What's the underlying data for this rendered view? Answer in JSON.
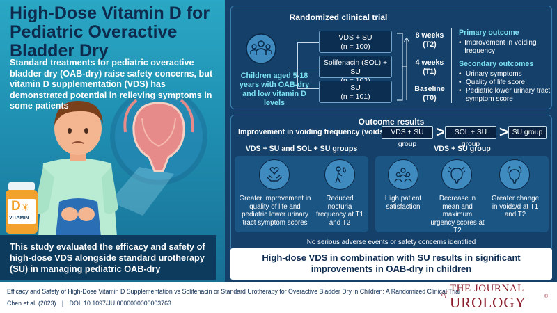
{
  "title": "High-Dose Vitamin D for Pediatric Overactive Bladder Dry",
  "intro": "Standard treatments for pediatric overactive bladder dry (OAB-dry) raise safety concerns, but vitamin D supplementation (VDS) has demonstrated potential in relieving symptoms in some patients",
  "bottle_label": "VITAMIN",
  "bottle_letter": "D",
  "study_summary": "This study evaluated the efficacy and safety of high-dose VDS alongside standard urotherapy (SU) in managing pediatric OAB-dry",
  "trial": {
    "header": "Randomized clinical trial",
    "population": "Children aged 5-18 years with OAB-dry and low vitamin D levels",
    "arms": [
      {
        "name": "VDS + SU",
        "n": "(n = 100)"
      },
      {
        "name": "Solifenacin (SOL) + SU",
        "n": "(n = 102)"
      },
      {
        "name": "SU",
        "n": "(n = 101)"
      }
    ],
    "timepoints": [
      {
        "label": "8 weeks",
        "code": "(T2)"
      },
      {
        "label": "4 weeks",
        "code": "(T1)"
      },
      {
        "label": "Baseline",
        "code": "(T0)"
      }
    ],
    "primary_title": "Primary outcome",
    "primary_items": [
      "Improvement in voiding frequency"
    ],
    "secondary_title": "Secondary outcomes",
    "secondary_items": [
      "Urinary symptoms",
      "Quality of life score",
      "Pediatric lower urinary tract symptom score"
    ]
  },
  "results": {
    "header": "Outcome results",
    "vf_label": "Improvement in voiding frequency (voids/d):",
    "ranking": [
      "VDS + SU group",
      "SOL + SU group",
      "SU group"
    ],
    "gt_symbol": ">",
    "left_group_title": "VDS + SU and SOL + SU groups",
    "right_group_title": "VDS + SU group",
    "left_items": [
      {
        "icon": "heart-hands-icon",
        "text": "Greater improvement in quality of life and pediatric lower urinary tract symptom scores"
      },
      {
        "icon": "nocturia-person-icon",
        "text": "Reduced nocturia frequency at T1 and T2"
      }
    ],
    "right_items": [
      {
        "icon": "group-icon",
        "text": "High patient satisfaction"
      },
      {
        "icon": "bladder-urgency-icon",
        "text": "Decrease in mean and maximum urgency scores at T2"
      },
      {
        "icon": "bladder-icon",
        "text": "Greater change in voids/d at T1 and T2"
      }
    ],
    "safety": "No serious adverse events or safety concerns identified"
  },
  "conclusion": "High-dose VDS in combination with SU results in significant improvements in OAB-dry in children",
  "citation": {
    "title": "Efficacy and Safety of High-Dose Vitamin D Supplementation vs Solifenacin or Standard Urotherapy for Overactive Bladder Dry in Children: A Randomized Clinical Trial",
    "authors": "Chen et al. (2023)",
    "separator": "|",
    "doi": "DOI: 10.1097/JU.0000000000003763"
  },
  "journal": {
    "the": "THE JOURNAL",
    "of": "of",
    "name": "UROLOGY",
    "reg": "®"
  },
  "colors": {
    "navy": "#14406a",
    "teal": "#2aa7c4",
    "accent": "#7ee2f2"
  }
}
